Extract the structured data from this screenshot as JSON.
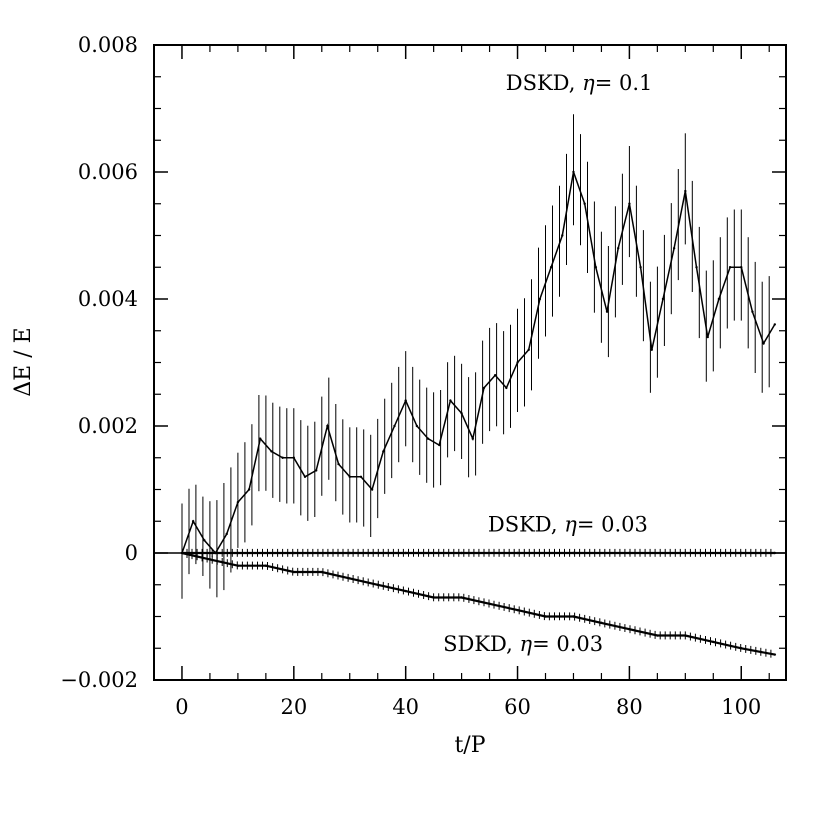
{
  "chart_data": {
    "type": "line",
    "xlabel": "t/P",
    "ylabel": "ΔE / E",
    "xlim": [
      -5,
      108
    ],
    "ylim": [
      -0.002,
      0.008
    ],
    "xticks": [
      0,
      20,
      40,
      60,
      80,
      100
    ],
    "xtick_labels": [
      "0",
      "20",
      "40",
      "60",
      "80",
      "100"
    ],
    "yticks": [
      -0.002,
      0,
      0.002,
      0.004,
      0.006,
      0.008
    ],
    "ytick_labels": [
      "−0.002",
      "0",
      "0.002",
      "0.004",
      "0.006",
      "0.008"
    ],
    "zero_line": true,
    "grid": false,
    "legend": "none",
    "series": [
      {
        "name": "DSKD, η= 0.1",
        "name_parts": [
          "DSKD,",
          "η",
          "=  0.1"
        ],
        "x": [
          0,
          2,
          4,
          6,
          8,
          10,
          12,
          14,
          16,
          18,
          20,
          22,
          24,
          26,
          28,
          30,
          32,
          34,
          36,
          38,
          40,
          42,
          44,
          46,
          48,
          50,
          52,
          54,
          56,
          58,
          60,
          62,
          64,
          66,
          68,
          70,
          72,
          74,
          76,
          78,
          80,
          82,
          84,
          86,
          88,
          90,
          92,
          94,
          96,
          98,
          100,
          102,
          104,
          106
        ],
        "y": [
          0.0,
          0.0005,
          0.0002,
          0.0,
          0.0003,
          0.0008,
          0.001,
          0.0018,
          0.0016,
          0.0015,
          0.0015,
          0.0012,
          0.0013,
          0.002,
          0.0014,
          0.0012,
          0.0012,
          0.001,
          0.0016,
          0.002,
          0.0024,
          0.002,
          0.0018,
          0.0017,
          0.0024,
          0.0022,
          0.0018,
          0.0026,
          0.0028,
          0.0026,
          0.003,
          0.0032,
          0.004,
          0.0045,
          0.005,
          0.006,
          0.0055,
          0.0045,
          0.0038,
          0.0048,
          0.0055,
          0.0045,
          0.0032,
          0.004,
          0.0048,
          0.0057,
          0.0045,
          0.0034,
          0.004,
          0.0045,
          0.0045,
          0.0038,
          0.0033,
          0.0036
        ],
        "oscillation_amplitude": [
          0.0012,
          0.001,
          0.001,
          0.0012,
          0.0014,
          0.0012,
          0.0013,
          0.0012,
          0.0012,
          0.0012,
          0.0012,
          0.0012,
          0.0012,
          0.0013,
          0.0012,
          0.0012,
          0.0012,
          0.0013,
          0.0012,
          0.0012,
          0.0012,
          0.0012,
          0.0012,
          0.0012,
          0.0012,
          0.0012,
          0.0013,
          0.0013,
          0.0013,
          0.0013,
          0.0013,
          0.0014,
          0.0014,
          0.0014,
          0.0014,
          0.0014,
          0.0014,
          0.0014,
          0.0014,
          0.0014,
          0.0014,
          0.0014,
          0.0014,
          0.0014,
          0.0014,
          0.0014,
          0.0014,
          0.0014,
          0.0014,
          0.0014,
          0.0014,
          0.0014,
          0.0014,
          0.0014
        ]
      },
      {
        "name": "DSKD, η= 0.03",
        "name_parts": [
          "DSKD,",
          "η",
          "=  0.03"
        ],
        "x": [
          0,
          10,
          20,
          30,
          40,
          50,
          60,
          70,
          80,
          90,
          100,
          106
        ],
        "y": [
          0.0,
          0.0,
          0.0,
          0.0,
          0.0,
          0.0,
          0.0,
          0.0,
          0.0,
          0.0,
          0.0,
          0.0
        ],
        "oscillation_amplitude": [
          0.0001,
          0.0001,
          0.0001,
          0.0001,
          0.0001,
          0.0001,
          0.0001,
          0.0001,
          0.0001,
          0.0001,
          0.0001,
          0.0001
        ]
      },
      {
        "name": "SDKD, η= 0.03",
        "name_parts": [
          "SDKD,",
          "η",
          "=  0.03"
        ],
        "x": [
          0,
          5,
          10,
          15,
          20,
          25,
          30,
          35,
          40,
          45,
          50,
          55,
          60,
          65,
          70,
          75,
          80,
          85,
          90,
          95,
          100,
          106
        ],
        "y": [
          0.0,
          -0.0001,
          -0.0002,
          -0.0002,
          -0.0003,
          -0.0003,
          -0.0004,
          -0.0005,
          -0.0006,
          -0.0007,
          -0.0007,
          -0.0008,
          -0.0009,
          -0.001,
          -0.001,
          -0.0011,
          -0.0012,
          -0.0013,
          -0.0013,
          -0.0014,
          -0.0015,
          -0.0016
        ],
        "oscillation_amplitude": [
          0.0001,
          0.0001,
          0.0001,
          0.0001,
          0.0001,
          0.0001,
          0.0001,
          0.0001,
          0.0001,
          0.0001,
          0.0001,
          0.0001,
          0.0001,
          0.0001,
          0.0001,
          0.0001,
          0.0001,
          0.0001,
          0.0001,
          0.0001,
          0.0001,
          0.0001
        ]
      }
    ],
    "annotations": [
      {
        "series_index": 0,
        "x": 71,
        "y": 0.0074
      },
      {
        "series_index": 1,
        "x": 69,
        "y": 0.00045
      },
      {
        "series_index": 2,
        "x": 61,
        "y": -0.00143
      }
    ]
  }
}
